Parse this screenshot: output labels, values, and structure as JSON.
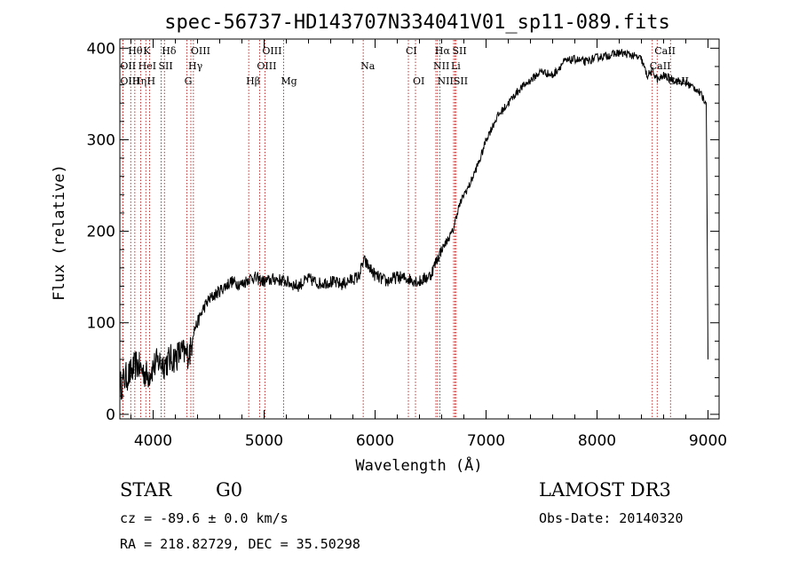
{
  "chart_data": {
    "type": "line",
    "title": "spec-56737-HD143707N334041V01_sp11-089.fits",
    "xlabel": "Wavelength (Å)",
    "ylabel": "Flux (relative)",
    "xlim": [
      3700,
      9100
    ],
    "ylim": [
      -5,
      410
    ],
    "xticks": [
      4000,
      5000,
      6000,
      7000,
      8000,
      9000
    ],
    "yticks": [
      0,
      100,
      200,
      300,
      400
    ],
    "series": [
      {
        "name": "flux",
        "x": [
          3700,
          3750,
          3800,
          3850,
          3900,
          3950,
          4000,
          4050,
          4100,
          4150,
          4200,
          4250,
          4300,
          4340,
          4360,
          4400,
          4450,
          4500,
          4600,
          4700,
          4800,
          4860,
          4900,
          5000,
          5100,
          5200,
          5300,
          5400,
          5500,
          5600,
          5700,
          5800,
          5850,
          5900,
          5950,
          6000,
          6100,
          6200,
          6300,
          6400,
          6500,
          6560,
          6600,
          6650,
          6700,
          6750,
          6800,
          6850,
          6900,
          6950,
          7000,
          7100,
          7200,
          7300,
          7400,
          7500,
          7600,
          7700,
          7800,
          7900,
          8000,
          8100,
          8200,
          8300,
          8400,
          8450,
          8500,
          8550,
          8600,
          8700,
          8800,
          8900,
          8960,
          8985,
          9000
        ],
        "y": [
          30,
          40,
          45,
          55,
          48,
          42,
          52,
          58,
          55,
          60,
          62,
          68,
          65,
          70,
          90,
          100,
          115,
          125,
          135,
          145,
          142,
          148,
          150,
          145,
          148,
          145,
          140,
          148,
          143,
          145,
          142,
          148,
          150,
          168,
          160,
          152,
          145,
          150,
          148,
          145,
          152,
          170,
          180,
          190,
          200,
          225,
          240,
          250,
          265,
          280,
          300,
          325,
          340,
          355,
          365,
          375,
          370,
          385,
          388,
          385,
          390,
          392,
          395,
          393,
          388,
          370,
          375,
          365,
          370,
          365,
          362,
          355,
          345,
          340,
          60
        ]
      }
    ],
    "spectral_lines": [
      {
        "label": "Hθ",
        "x": 3798,
        "row": 1
      },
      {
        "label": "K",
        "x": 3934,
        "row": 1
      },
      {
        "label": "Hδ",
        "x": 4102,
        "row": 1
      },
      {
        "label": "OIII",
        "x": 4363,
        "row": 1
      },
      {
        "label": "OIII",
        "x": 5007,
        "row": 1
      },
      {
        "label": "CI",
        "x": 6300,
        "row": 1
      },
      {
        "label": "Hα",
        "x": 6563,
        "row": 1
      },
      {
        "label": "SII",
        "x": 6720,
        "row": 1
      },
      {
        "label": "CaII",
        "x": 8542,
        "row": 1
      },
      {
        "label": "OII",
        "x": 3727,
        "row": 2
      },
      {
        "label": "HeI",
        "x": 3889,
        "row": 2
      },
      {
        "label": "SII",
        "x": 4072,
        "row": 2
      },
      {
        "label": "Hγ",
        "x": 4340,
        "row": 2
      },
      {
        "label": "OIII",
        "x": 4959,
        "row": 2
      },
      {
        "label": "Na",
        "x": 5893,
        "row": 2
      },
      {
        "label": "NII",
        "x": 6548,
        "row": 2
      },
      {
        "label": "Li",
        "x": 6708,
        "row": 2
      },
      {
        "label": "CaII",
        "x": 8498,
        "row": 2
      },
      {
        "label": "OIII",
        "x": 3727,
        "row": 3
      },
      {
        "label": "Hη",
        "x": 3835,
        "row": 3
      },
      {
        "label": "H",
        "x": 3968,
        "row": 3
      },
      {
        "label": "G",
        "x": 4305,
        "row": 3
      },
      {
        "label": "Hβ",
        "x": 4861,
        "row": 3
      },
      {
        "label": "Mg",
        "x": 5175,
        "row": 3
      },
      {
        "label": "OI",
        "x": 6364,
        "row": 3
      },
      {
        "label": "NII",
        "x": 6584,
        "row": 3
      },
      {
        "label": "SII",
        "x": 6731,
        "row": 3
      },
      {
        "label": "CaII",
        "x": 8662,
        "row": 3
      }
    ],
    "line_color": "#000000",
    "marker_color": "#b00000"
  },
  "info": {
    "object_class": "STAR",
    "subclass": "G0",
    "survey": "LAMOST DR3",
    "redshift": "cz = -89.6 ± 0.0 km/s",
    "obs_date": "Obs-Date: 20140320",
    "coords": "RA = 218.82729, DEC =  35.50298"
  }
}
